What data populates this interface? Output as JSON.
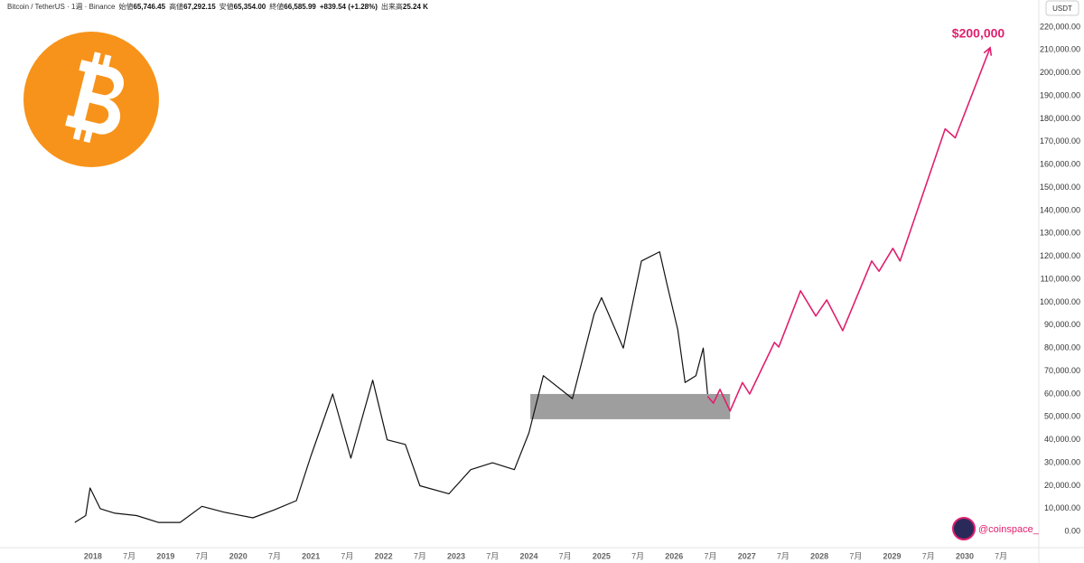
{
  "chart_data": {
    "type": "line",
    "title": "Bitcoin / TetherUS · 1週 · Binance",
    "ohlc": [
      {
        "label": "始値",
        "value": "65,746.45"
      },
      {
        "label": "高値",
        "value": "67,292.15"
      },
      {
        "label": "安値",
        "value": "65,354.00"
      },
      {
        "label": "終値",
        "value": "66,585.99"
      },
      {
        "label": "",
        "value": "+839.54 (+1.28%)"
      },
      {
        "label": "出来高",
        "value": "25.24 K"
      }
    ],
    "currency": "USDT",
    "xlim": [
      2016.72,
      2031.02
    ],
    "ylim": [
      -7000,
      231800
    ],
    "xticks": [
      {
        "value": 2018,
        "label": "2018"
      },
      {
        "value": 2018.5,
        "label": "7月"
      },
      {
        "value": 2019,
        "label": "2019"
      },
      {
        "value": 2019.5,
        "label": "7月"
      },
      {
        "value": 2020,
        "label": "2020"
      },
      {
        "value": 2020.5,
        "label": "7月"
      },
      {
        "value": 2021,
        "label": "2021"
      },
      {
        "value": 2021.5,
        "label": "7月"
      },
      {
        "value": 2022,
        "label": "2022"
      },
      {
        "value": 2022.5,
        "label": "7月"
      },
      {
        "value": 2023,
        "label": "2023"
      },
      {
        "value": 2023.5,
        "label": "7月"
      },
      {
        "value": 2024,
        "label": "2024"
      },
      {
        "value": 2024.5,
        "label": "7月"
      },
      {
        "value": 2025,
        "label": "2025"
      },
      {
        "value": 2025.5,
        "label": "7月"
      },
      {
        "value": 2026,
        "label": "2026"
      },
      {
        "value": 2026.5,
        "label": "7月"
      },
      {
        "value": 2027,
        "label": "2027"
      },
      {
        "value": 2027.5,
        "label": "7月"
      },
      {
        "value": 2028,
        "label": "2028"
      },
      {
        "value": 2028.5,
        "label": "7月"
      },
      {
        "value": 2029,
        "label": "2029"
      },
      {
        "value": 2029.5,
        "label": "7月"
      },
      {
        "value": 2030,
        "label": "2030"
      },
      {
        "value": 2030.5,
        "label": "7月"
      }
    ],
    "yticks": [
      {
        "value": 0,
        "label": "0.00"
      },
      {
        "value": 10000,
        "label": "10,000.00"
      },
      {
        "value": 20000,
        "label": "20,000.00"
      },
      {
        "value": 30000,
        "label": "30,000.00"
      },
      {
        "value": 40000,
        "label": "40,000.00"
      },
      {
        "value": 50000,
        "label": "50,000.00"
      },
      {
        "value": 60000,
        "label": "60,000.00"
      },
      {
        "value": 70000,
        "label": "70,000.00"
      },
      {
        "value": 80000,
        "label": "80,000.00"
      },
      {
        "value": 90000,
        "label": "90,000.00"
      },
      {
        "value": 100000,
        "label": "100,000.00"
      },
      {
        "value": 110000,
        "label": "110,000.00"
      },
      {
        "value": 120000,
        "label": "120,000.00"
      },
      {
        "value": 130000,
        "label": "130,000.00"
      },
      {
        "value": 140000,
        "label": "140,000.00"
      },
      {
        "value": 150000,
        "label": "150,000.00"
      },
      {
        "value": 160000,
        "label": "160,000.00"
      },
      {
        "value": 170000,
        "label": "170,000.00"
      },
      {
        "value": 180000,
        "label": "180,000.00"
      },
      {
        "value": 190000,
        "label": "190,000.00"
      },
      {
        "value": 200000,
        "label": "200,000.00"
      },
      {
        "value": 210000,
        "label": "210,000.00"
      },
      {
        "value": 220000,
        "label": "220,000.00"
      }
    ],
    "series": [
      {
        "color": "#111111",
        "x": [
          2017.75,
          2017.9,
          2017.96,
          2018.1,
          2018.3,
          2018.6,
          2018.9,
          2019.2,
          2019.5,
          2019.8,
          2020.2,
          2020.5,
          2020.8,
          2021.0,
          2021.3,
          2021.55,
          2021.85,
          2022.05,
          2022.3,
          2022.5,
          2022.9,
          2023.2,
          2023.5,
          2023.8,
          2024.0,
          2024.2,
          2024.6,
          2024.9,
          2025.0,
          2025.3,
          2025.55,
          2025.8,
          2025.9,
          2026.05,
          2026.15,
          2026.3,
          2026.4,
          2026.46
        ],
        "values": [
          4000,
          7000,
          19000,
          10000,
          8000,
          7000,
          4000,
          4000,
          11000,
          8500,
          6000,
          9500,
          13500,
          33000,
          60000,
          32000,
          66000,
          40000,
          38000,
          20000,
          16500,
          27000,
          30000,
          27000,
          43000,
          68000,
          58000,
          95000,
          102000,
          80000,
          118000,
          122000,
          108000,
          88000,
          65000,
          68000,
          80000,
          60000
        ]
      },
      {
        "color": "#e0206e",
        "x": [
          2026.46,
          2026.54,
          2026.63,
          2026.77,
          2026.94,
          2027.04,
          2027.38,
          2027.44,
          2027.74,
          2027.95,
          2028.1,
          2028.32,
          2028.72,
          2028.82,
          2029.01,
          2029.11,
          2029.73,
          2029.87,
          2030.35
        ],
        "values": [
          59000,
          56000,
          62000,
          52600,
          65000,
          60000,
          82500,
          80500,
          105000,
          94000,
          101000,
          87600,
          118000,
          113500,
          123500,
          118000,
          175600,
          171700,
          211000
        ]
      }
    ],
    "zone": {
      "x": [
        2024.02,
        2026.77
      ],
      "y": [
        49000,
        60000
      ],
      "color": "#9e9e9e"
    },
    "target_label": "$200,000",
    "watermark": "@coinspace_"
  }
}
